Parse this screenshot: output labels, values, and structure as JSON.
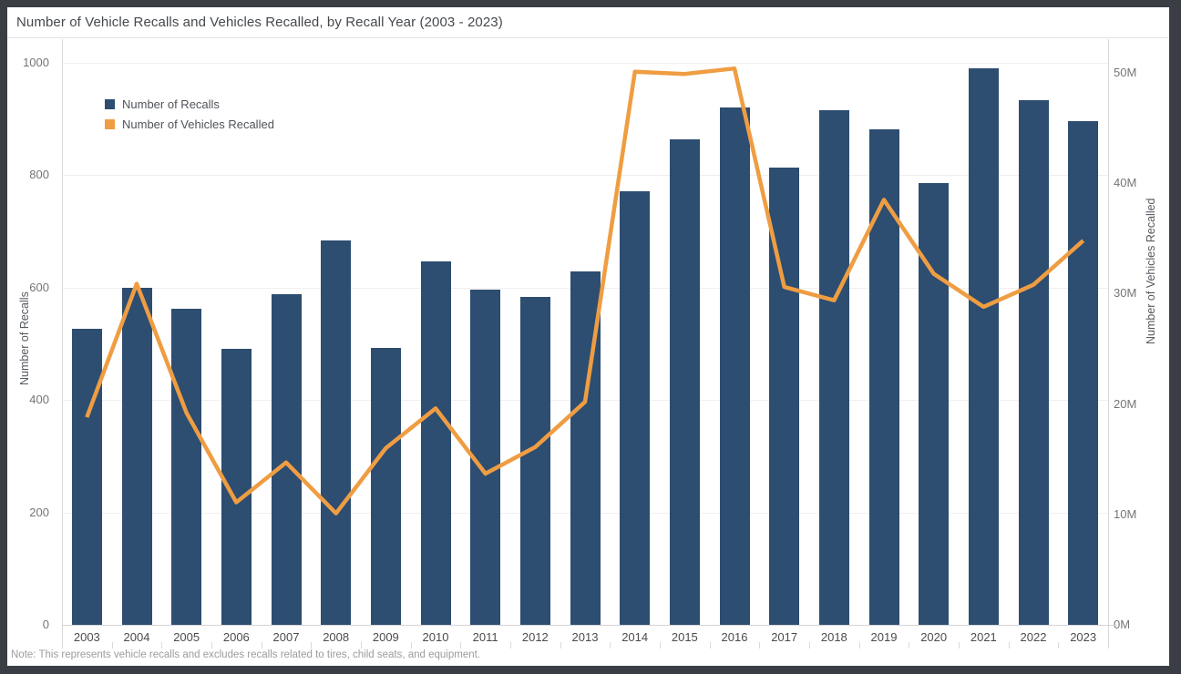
{
  "window": {
    "title": "Number of Vehicle Recalls and Vehicles Recalled, by Recall Year (2003 - 2023)"
  },
  "note": "Note: This represents vehicle recalls and excludes recalls related to tires, child seats, and equipment.",
  "colors": {
    "frame": "#3a3e44",
    "bar": "#2d4d71",
    "line": "#ef9d42",
    "grid": "#efefef",
    "axis_line": "#d4d4d4",
    "border": "#d9d9d9"
  },
  "chart_data": {
    "type": "bar",
    "subtype": "dual-axis bar + line",
    "title": "Number of Vehicle Recalls and Vehicles Recalled, by Recall Year (2003 - 2023)",
    "categories": [
      "2003",
      "2004",
      "2005",
      "2006",
      "2007",
      "2008",
      "2009",
      "2010",
      "2011",
      "2012",
      "2013",
      "2014",
      "2015",
      "2016",
      "2017",
      "2018",
      "2019",
      "2020",
      "2021",
      "2022",
      "2023"
    ],
    "series": [
      {
        "name": "Number of Recalls",
        "type": "bar",
        "axis": "left",
        "color": "#2d4d71",
        "values": [
          527,
          600,
          563,
          491,
          589,
          684,
          492,
          646,
          597,
          583,
          629,
          772,
          864,
          921,
          813,
          915,
          882,
          786,
          990,
          933,
          896
        ]
      },
      {
        "name": "Number of Vehicles Recalled",
        "type": "line",
        "axis": "right",
        "color": "#ef9d42",
        "unit": "millions",
        "values_millions": [
          18.8,
          30.9,
          19.2,
          11.1,
          14.7,
          10.1,
          16.0,
          19.6,
          13.7,
          16.1,
          20.2,
          50.1,
          49.9,
          50.4,
          30.6,
          29.4,
          38.5,
          31.8,
          28.8,
          30.8,
          34.8
        ]
      }
    ],
    "left_axis": {
      "label": "Number of Recalls",
      "tick_labels": [
        "0",
        "200",
        "400",
        "600",
        "800",
        "1000"
      ],
      "tick_values": [
        0,
        200,
        400,
        600,
        800,
        1000
      ],
      "range": [
        0,
        1000
      ]
    },
    "right_axis": {
      "label": "Number of Vehicles Recalled",
      "tick_labels": [
        "0M",
        "10M",
        "20M",
        "30M",
        "40M",
        "50M"
      ],
      "tick_values": [
        0,
        10,
        20,
        30,
        40,
        50
      ],
      "range_millions": [
        0,
        50
      ]
    },
    "legend": {
      "position": "top-left",
      "entries": [
        "Number of Recalls",
        "Number of Vehicles Recalled"
      ]
    },
    "grid": "horizontal gridlines only",
    "xlabel": "",
    "ylabel_left": "Number of Recalls",
    "ylabel_right": "Number of Vehicles Recalled"
  }
}
